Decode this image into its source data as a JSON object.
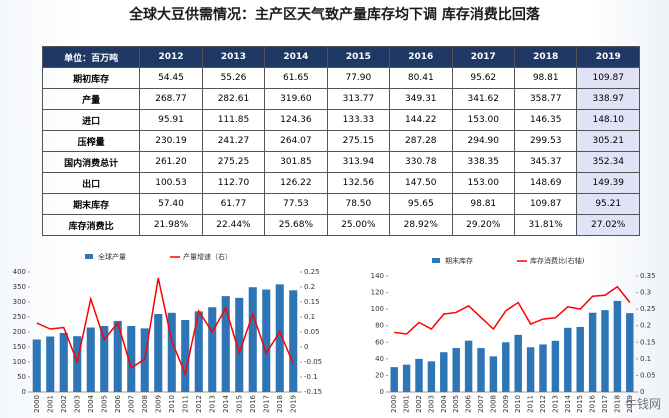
{
  "title": "全球大豆供需情况：主产区天气致产量库存均下调 库存消费比回落",
  "table": {
    "header": [
      "单位：百万吨",
      "2012",
      "2013",
      "2014",
      "2015",
      "2016",
      "2017",
      "2018",
      "2019"
    ],
    "rows": [
      [
        "期初库存",
        "54.45",
        "55.26",
        "61.65",
        "77.90",
        "80.41",
        "95.62",
        "98.81",
        "109.87"
      ],
      [
        "产量",
        "268.77",
        "282.61",
        "319.60",
        "313.77",
        "349.31",
        "341.62",
        "358.77",
        "338.97"
      ],
      [
        "进口",
        "95.91",
        "111.85",
        "124.36",
        "133.33",
        "144.22",
        "153.00",
        "146.35",
        "148.10"
      ],
      [
        "压榨量",
        "230.19",
        "241.27",
        "264.07",
        "275.15",
        "287.28",
        "294.90",
        "299.53",
        "305.21"
      ],
      [
        "国内消费总计",
        "261.20",
        "275.25",
        "301.85",
        "313.94",
        "330.78",
        "338.35",
        "345.37",
        "352.34"
      ],
      [
        "出口",
        "100.53",
        "112.70",
        "126.22",
        "132.56",
        "147.50",
        "153.00",
        "148.69",
        "149.39"
      ],
      [
        "期末库存",
        "57.40",
        "61.77",
        "77.53",
        "78.50",
        "95.65",
        "98.81",
        "109.87",
        "95.21"
      ],
      [
        "库存消费比",
        "21.98%",
        "22.44%",
        "25.68%",
        "25.00%",
        "28.92%",
        "29.20%",
        "31.81%",
        "27.02%"
      ]
    ]
  },
  "chart_data": [
    {
      "type": "combo",
      "categories": [
        "2000",
        "2001",
        "2002",
        "2003",
        "2004",
        "2005",
        "2006",
        "2007",
        "2008",
        "2009",
        "2010",
        "2011",
        "2012",
        "2013",
        "2014",
        "2015",
        "2016",
        "2017",
        "2018",
        "2019"
      ],
      "ylim": [
        0,
        400
      ],
      "yticks": [
        0,
        50,
        100,
        150,
        200,
        250,
        300,
        350,
        400
      ],
      "y2lim": [
        -0.15,
        0.25
      ],
      "y2ticks": [
        -0.15,
        -0.1,
        -0.05,
        0,
        0.05,
        0.1,
        0.15,
        0.2,
        0.25
      ],
      "series": [
        {
          "name": "全球产量",
          "type": "bar",
          "color": "#2e75b6",
          "values": [
            175,
            185,
            197,
            186,
            215,
            220,
            237,
            220,
            212,
            260,
            264,
            240,
            268.8,
            282.6,
            319.6,
            313.8,
            349.3,
            341.6,
            358.8,
            339
          ]
        },
        {
          "name": "产量增速（右）",
          "type": "line",
          "axis": "y2",
          "color": "#ff0000",
          "values": [
            0.08,
            0.06,
            0.065,
            -0.05,
            0.16,
            0.025,
            0.08,
            -0.07,
            -0.04,
            0.23,
            0.02,
            -0.09,
            0.12,
            0.05,
            0.13,
            -0.02,
            0.11,
            -0.02,
            0.05,
            -0.055
          ]
        }
      ]
    },
    {
      "type": "combo",
      "categories": [
        "2000",
        "2001",
        "2002",
        "2003",
        "2004",
        "2005",
        "2006",
        "2007",
        "2008",
        "2009",
        "2010",
        "2011",
        "2012",
        "2013",
        "2014",
        "2015",
        "2016",
        "2017",
        "2018",
        "2019"
      ],
      "ylim": [
        0,
        140
      ],
      "yticks": [
        0,
        20,
        40,
        60,
        80,
        100,
        120,
        140
      ],
      "y2lim": [
        0,
        0.35
      ],
      "y2ticks": [
        0,
        0.05,
        0.1,
        0.15,
        0.2,
        0.25,
        0.3,
        0.35
      ],
      "series": [
        {
          "name": "期末库存",
          "type": "bar",
          "color": "#2e75b6",
          "values": [
            30,
            33,
            40,
            37,
            48,
            53,
            62,
            53,
            43,
            60,
            69,
            54,
            57.4,
            61.8,
            77.5,
            78.5,
            95.7,
            98.8,
            109.9,
            95.2
          ]
        },
        {
          "name": "库存消费比(右轴)",
          "type": "line",
          "axis": "y2",
          "color": "#ff0000",
          "values": [
            0.18,
            0.175,
            0.21,
            0.19,
            0.235,
            0.24,
            0.26,
            0.225,
            0.19,
            0.245,
            0.27,
            0.205,
            0.22,
            0.224,
            0.257,
            0.25,
            0.289,
            0.292,
            0.318,
            0.27
          ]
        }
      ]
    }
  ],
  "watermark": "牛钱网"
}
